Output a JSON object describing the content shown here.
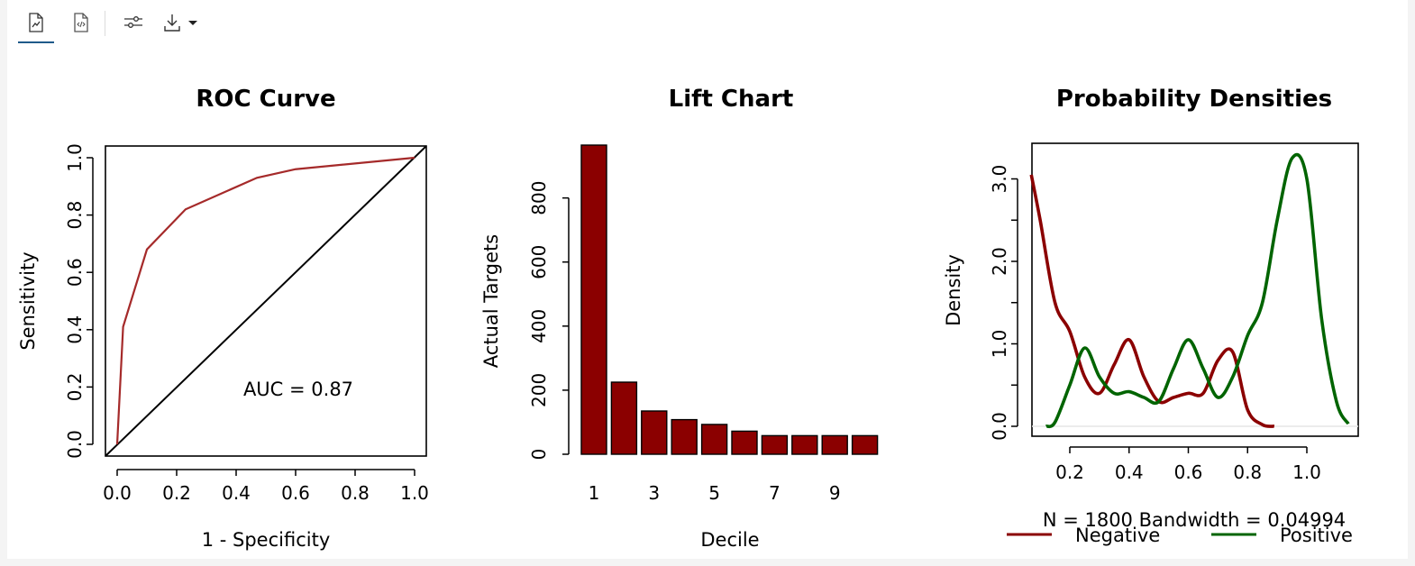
{
  "toolbar": {
    "buttons": [
      {
        "name": "report-chart-view-button",
        "icon": "document-chart-icon",
        "active": true
      },
      {
        "name": "report-code-view-button",
        "icon": "document-code-icon",
        "active": false
      },
      {
        "name": "settings-button",
        "icon": "sliders-icon",
        "active": false
      },
      {
        "name": "download-button",
        "icon": "download-icon",
        "active": false,
        "has_dropdown": true
      }
    ]
  },
  "colors": {
    "dark_red": "#8b0000",
    "curve_red": "#a52a2a",
    "green": "#006400",
    "active_tab": "#1f5a8a"
  },
  "chart_data": [
    {
      "type": "line",
      "title": "ROC Curve",
      "xlabel": "1 - Specificity",
      "ylabel": "Sensitivity",
      "xlim": [
        0,
        1
      ],
      "ylim": [
        0,
        1
      ],
      "x_ticks": [
        "0.0",
        "0.2",
        "0.4",
        "0.6",
        "0.8",
        "1.0"
      ],
      "y_ticks": [
        "0.0",
        "0.2",
        "0.4",
        "0.6",
        "0.8",
        "1.0"
      ],
      "series": [
        {
          "x": [
            0,
            0.02,
            0.1,
            0.23,
            0.47,
            0.6,
            1.0
          ],
          "y": [
            0,
            0.41,
            0.68,
            0.82,
            0.93,
            0.96,
            1.0
          ]
        },
        {
          "x": [
            0,
            1
          ],
          "y": [
            0,
            1
          ]
        }
      ],
      "annotation": "AUC =  0.87"
    },
    {
      "type": "bar",
      "title": "Lift Chart",
      "xlabel": "Decile",
      "ylabel": "Actual Targets",
      "categories": [
        "1",
        "2",
        "3",
        "4",
        "5",
        "6",
        "7",
        "8",
        "9",
        "10"
      ],
      "x_tick_labels": [
        "1",
        "3",
        "5",
        "7",
        "9"
      ],
      "y_ticks": [
        "0",
        "200",
        "400",
        "600",
        "800"
      ],
      "values": [
        965,
        225,
        135,
        108,
        93,
        72,
        58,
        58,
        58,
        58
      ],
      "ylim": [
        0,
        965
      ]
    },
    {
      "type": "line",
      "title": "Probability Densities",
      "xlabel": "N = 1800   Bandwidth = 0.04994",
      "ylabel": "Density",
      "xlim": [
        0.07,
        1.18
      ],
      "ylim": [
        -0.1,
        3.45
      ],
      "x_ticks": [
        "0.2",
        "0.4",
        "0.6",
        "0.8",
        "1.0"
      ],
      "y_ticks": [
        "0.0",
        "1.0",
        "2.0",
        "3.0"
      ],
      "legend": [
        "Negative",
        "Positive"
      ],
      "series": [
        {
          "x": [
            0.07,
            0.1,
            0.15,
            0.2,
            0.25,
            0.3,
            0.35,
            0.4,
            0.45,
            0.5,
            0.55,
            0.6,
            0.65,
            0.7,
            0.75,
            0.8,
            0.85,
            0.89
          ],
          "y": [
            3.05,
            2.5,
            1.5,
            1.15,
            0.6,
            0.4,
            0.75,
            1.05,
            0.6,
            0.3,
            0.35,
            0.4,
            0.4,
            0.8,
            0.9,
            0.2,
            0.02,
            0.0
          ]
        },
        {
          "x": [
            0.12,
            0.15,
            0.2,
            0.25,
            0.3,
            0.35,
            0.4,
            0.45,
            0.5,
            0.55,
            0.6,
            0.65,
            0.7,
            0.75,
            0.8,
            0.85,
            0.9,
            0.95,
            1.0,
            1.05,
            1.1,
            1.14
          ],
          "y": [
            0.0,
            0.05,
            0.5,
            0.95,
            0.6,
            0.4,
            0.42,
            0.35,
            0.3,
            0.7,
            1.05,
            0.7,
            0.35,
            0.6,
            1.1,
            1.5,
            2.5,
            3.25,
            3.0,
            1.3,
            0.3,
            0.03
          ]
        }
      ]
    }
  ]
}
